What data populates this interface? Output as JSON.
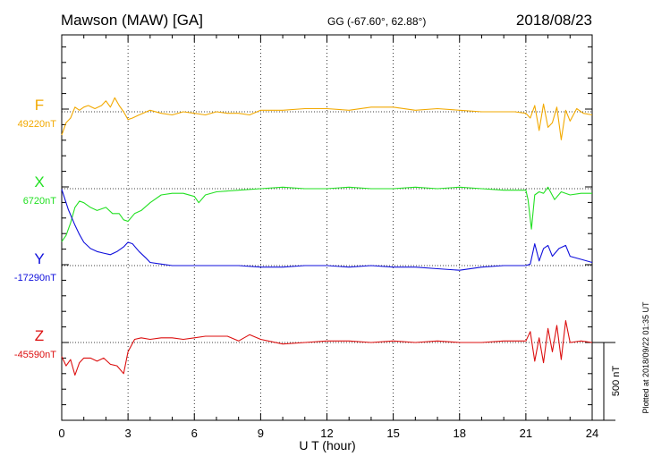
{
  "header": {
    "station": "Mawson (MAW)  [GA]",
    "coords": "GG (-67.60°,  62.88°)",
    "date": "2018/08/23"
  },
  "footer_note": "Plotted at 2018/09/22 01:35 UT",
  "chart_data": {
    "type": "line",
    "title": "Mawson (MAW)  [GA]",
    "xlabel": "U T (hour)",
    "xlim": [
      0,
      24
    ],
    "x_ticks": [
      0,
      3,
      6,
      9,
      12,
      15,
      18,
      21,
      24
    ],
    "x_tick_labels": [
      "0",
      "3",
      "6",
      "9",
      "12",
      "15",
      "18",
      "21",
      "24"
    ],
    "grid": "dotted vertical lines every 3 hours; dotted baseline per component",
    "scale_bar_label": "500 nT",
    "scale_bar_nT": 500,
    "panel_nT_span": 1866,
    "series": [
      {
        "name": "F",
        "baseline_label": "49220nT",
        "baseline_nT": 49220,
        "color": "#f2a900",
        "x": [
          0,
          0.2,
          0.4,
          0.6,
          0.8,
          1,
          1.2,
          1.5,
          1.8,
          2,
          2.2,
          2.4,
          2.6,
          2.8,
          3,
          3.2,
          3.5,
          4,
          4.5,
          5,
          5.5,
          6,
          6.5,
          7,
          7.5,
          8,
          8.5,
          9,
          10,
          11,
          12,
          13,
          14,
          15,
          16,
          17,
          18,
          19,
          20,
          20.5,
          21,
          21.2,
          21.4,
          21.6,
          21.8,
          22,
          22.2,
          22.4,
          22.6,
          22.8,
          23,
          23.3,
          23.6,
          24
        ],
        "y": [
          49070,
          49150,
          49180,
          49250,
          49230,
          49250,
          49260,
          49240,
          49260,
          49290,
          49250,
          49310,
          49260,
          49220,
          49170,
          49180,
          49200,
          49230,
          49210,
          49200,
          49220,
          49210,
          49200,
          49220,
          49210,
          49210,
          49200,
          49230,
          49230,
          49240,
          49240,
          49230,
          49250,
          49250,
          49230,
          49240,
          49230,
          49220,
          49220,
          49220,
          49210,
          49180,
          49260,
          49100,
          49270,
          49120,
          49150,
          49250,
          49040,
          49230,
          49160,
          49240,
          49210,
          49200
        ]
      },
      {
        "name": "X",
        "baseline_label": "6720nT",
        "baseline_nT": 6720,
        "color": "#22e022",
        "x": [
          0,
          0.2,
          0.4,
          0.6,
          0.8,
          1,
          1.3,
          1.6,
          2,
          2.3,
          2.6,
          2.8,
          3,
          3.3,
          3.6,
          4,
          4.5,
          5,
          5.5,
          6,
          6.2,
          6.5,
          7,
          8,
          9,
          10,
          11,
          12,
          13,
          14,
          15,
          16,
          17,
          18,
          19,
          20,
          21,
          21.1,
          21.25,
          21.4,
          21.6,
          21.8,
          22,
          22.3,
          22.6,
          23,
          23.5,
          24
        ],
        "y": [
          6380,
          6420,
          6500,
          6600,
          6640,
          6630,
          6600,
          6580,
          6600,
          6560,
          6560,
          6520,
          6510,
          6560,
          6580,
          6630,
          6680,
          6690,
          6690,
          6670,
          6630,
          6680,
          6700,
          6710,
          6720,
          6730,
          6720,
          6720,
          6730,
          6720,
          6720,
          6730,
          6720,
          6730,
          6720,
          6710,
          6710,
          6650,
          6460,
          6680,
          6700,
          6690,
          6730,
          6650,
          6700,
          6680,
          6690,
          6690
        ]
      },
      {
        "name": "Y",
        "baseline_label": "-17290nT",
        "baseline_nT": -17290,
        "color": "#0f0fdc",
        "x": [
          0,
          0.3,
          0.6,
          0.8,
          1,
          1.3,
          1.6,
          1.9,
          2.2,
          2.5,
          2.8,
          3,
          3.2,
          3.5,
          3.8,
          4,
          4.5,
          5,
          6,
          7,
          8,
          9,
          10,
          11,
          12,
          13,
          14,
          15,
          16,
          17,
          18,
          19,
          20,
          21,
          21.2,
          21.4,
          21.6,
          21.8,
          22,
          22.2,
          22.5,
          22.8,
          23,
          23.5,
          24
        ],
        "y": [
          -16800,
          -16930,
          -17030,
          -17090,
          -17140,
          -17180,
          -17200,
          -17210,
          -17220,
          -17200,
          -17170,
          -17140,
          -17150,
          -17200,
          -17240,
          -17270,
          -17280,
          -17290,
          -17290,
          -17290,
          -17290,
          -17300,
          -17300,
          -17290,
          -17290,
          -17300,
          -17290,
          -17300,
          -17300,
          -17310,
          -17320,
          -17300,
          -17290,
          -17290,
          -17280,
          -17150,
          -17260,
          -17180,
          -17160,
          -17230,
          -17180,
          -17160,
          -17230,
          -17250,
          -17270
        ]
      },
      {
        "name": "Z",
        "baseline_label": "-45590nT",
        "baseline_nT": -45590,
        "color": "#dc0f0f",
        "x": [
          0,
          0.2,
          0.4,
          0.6,
          0.8,
          1,
          1.3,
          1.6,
          1.9,
          2.2,
          2.5,
          2.8,
          3,
          3.3,
          3.6,
          4,
          4.5,
          5,
          5.5,
          6,
          6.5,
          7,
          7.5,
          8,
          8.5,
          9,
          10,
          11,
          12,
          13,
          14,
          15,
          16,
          17,
          18,
          19,
          20,
          21,
          21.2,
          21.4,
          21.6,
          21.8,
          22,
          22.2,
          22.4,
          22.6,
          22.8,
          23,
          23.5,
          24
        ],
        "y": [
          -45680,
          -45740,
          -45700,
          -45800,
          -45720,
          -45690,
          -45690,
          -45710,
          -45690,
          -45730,
          -45740,
          -45790,
          -45650,
          -45570,
          -45560,
          -45570,
          -45560,
          -45560,
          -45570,
          -45560,
          -45550,
          -45550,
          -45550,
          -45580,
          -45540,
          -45570,
          -45600,
          -45590,
          -45580,
          -45580,
          -45590,
          -45580,
          -45590,
          -45580,
          -45590,
          -45590,
          -45580,
          -45580,
          -45520,
          -45710,
          -45560,
          -45720,
          -45500,
          -45650,
          -45480,
          -45700,
          -45450,
          -45590,
          -45580,
          -45590
        ]
      }
    ]
  }
}
